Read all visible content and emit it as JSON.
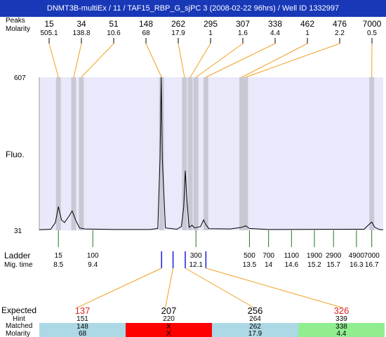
{
  "header": {
    "title": "DNMT3B-multiEx / 11 / TAF15_RBP_G_sjPC 3 (2008-02-22 96hrs) / Well ID 1332997"
  },
  "colors": {
    "title_bg": "#1838b8",
    "plot_bg": "#e9e9fb",
    "band": "#c9c9d6",
    "trace": "#000000",
    "leader_orange": "#f0a020",
    "ladder_green": "#1a7a1a",
    "peak_blue": "#1a1ae0",
    "expected_red": "#e02020",
    "cell_blue": "#add8e6",
    "cell_red": "#ff0000",
    "cell_green": "#90ee90"
  },
  "labels": {
    "peaks_row_top": "Peaks",
    "peaks_row_bottom": "Molarity",
    "y_axis": "Fluo.",
    "ladder": "Ladder",
    "mig_time": "Mig. time",
    "expected": "Expected",
    "hint": "Hint",
    "matched": "Matched",
    "molarity": "Molarity"
  },
  "chart_data": {
    "type": "line",
    "y_ticks": [
      607,
      31
    ],
    "ylim": [
      31,
      607
    ],
    "x_range": [
      8.0,
      17.0
    ],
    "peaks": [
      {
        "size": "15",
        "molarity": "505.1",
        "t": 8.5
      },
      {
        "size": "34",
        "molarity": "138.8",
        "t": 8.9
      },
      {
        "size": "51",
        "molarity": "10.6",
        "t": 9.1
      },
      {
        "size": "148",
        "molarity": "68",
        "t": 11.2
      },
      {
        "size": "262",
        "molarity": "17.9",
        "t": 11.8
      },
      {
        "size": "295",
        "molarity": "1",
        "t": 11.95
      },
      {
        "size": "307",
        "molarity": "1.6",
        "t": 12.1
      },
      {
        "size": "338",
        "molarity": "4.4",
        "t": 12.36
      },
      {
        "size": "462",
        "molarity": "1",
        "t": 13.3
      },
      {
        "size": "476",
        "molarity": "2.2",
        "t": 13.4
      },
      {
        "size": "7000",
        "molarity": "0.5",
        "t": 16.7
      }
    ],
    "trace": [
      [
        8.0,
        33
      ],
      [
        8.3,
        35
      ],
      [
        8.42,
        60
      ],
      [
        8.5,
        120
      ],
      [
        8.58,
        70
      ],
      [
        8.66,
        60
      ],
      [
        8.78,
        85
      ],
      [
        8.86,
        104
      ],
      [
        8.95,
        70
      ],
      [
        9.05,
        40
      ],
      [
        9.2,
        36
      ],
      [
        10.0,
        34
      ],
      [
        10.9,
        34
      ],
      [
        11.1,
        38
      ],
      [
        11.16,
        300
      ],
      [
        11.19,
        607
      ],
      [
        11.22,
        300
      ],
      [
        11.3,
        40
      ],
      [
        11.6,
        35
      ],
      [
        11.72,
        45
      ],
      [
        11.78,
        120
      ],
      [
        11.82,
        255
      ],
      [
        11.86,
        150
      ],
      [
        11.92,
        42
      ],
      [
        12.0,
        50
      ],
      [
        12.06,
        40
      ],
      [
        12.22,
        45
      ],
      [
        12.3,
        70
      ],
      [
        12.36,
        52
      ],
      [
        12.44,
        37
      ],
      [
        13.0,
        36
      ],
      [
        13.3,
        42
      ],
      [
        13.4,
        48
      ],
      [
        13.5,
        38
      ],
      [
        14.0,
        34
      ],
      [
        16.5,
        35
      ],
      [
        16.62,
        52
      ],
      [
        16.7,
        62
      ],
      [
        16.78,
        42
      ],
      [
        16.9,
        34
      ],
      [
        17.0,
        33
      ]
    ],
    "ladder": [
      {
        "size": "15",
        "time": "8.5",
        "t": 8.5
      },
      {
        "size": "100",
        "time": "9.4",
        "t": 9.4
      },
      {
        "size": "300",
        "time": "12.1",
        "t": 12.1
      },
      {
        "size": "500",
        "time": "13.5",
        "t": 13.5
      },
      {
        "size": "700",
        "time": "14",
        "t": 14.0
      },
      {
        "size": "1100",
        "time": "14.6",
        "t": 14.6
      },
      {
        "size": "1900",
        "time": "15.2",
        "t": 15.2
      },
      {
        "size": "2900",
        "time": "15.7",
        "t": 15.7
      },
      {
        "size": "4900",
        "time": "16.3",
        "t": 16.3
      },
      {
        "size": "7000",
        "time": "16.7",
        "t": 16.7
      }
    ],
    "expected": [
      {
        "expected": "137",
        "hint": "151",
        "matched": "148",
        "molarity": "68",
        "t": 11.2,
        "status": "ok",
        "highlight": true
      },
      {
        "expected": "207",
        "hint": "220",
        "matched": "X",
        "molarity": "X",
        "t": 11.5,
        "status": "miss",
        "highlight": false
      },
      {
        "expected": "256",
        "hint": "264",
        "matched": "262",
        "molarity": "17.9",
        "t": 11.82,
        "status": "ok",
        "highlight": false
      },
      {
        "expected": "326",
        "hint": "339",
        "matched": "338",
        "molarity": "4.4",
        "t": 12.36,
        "status": "good",
        "highlight": true
      }
    ]
  }
}
